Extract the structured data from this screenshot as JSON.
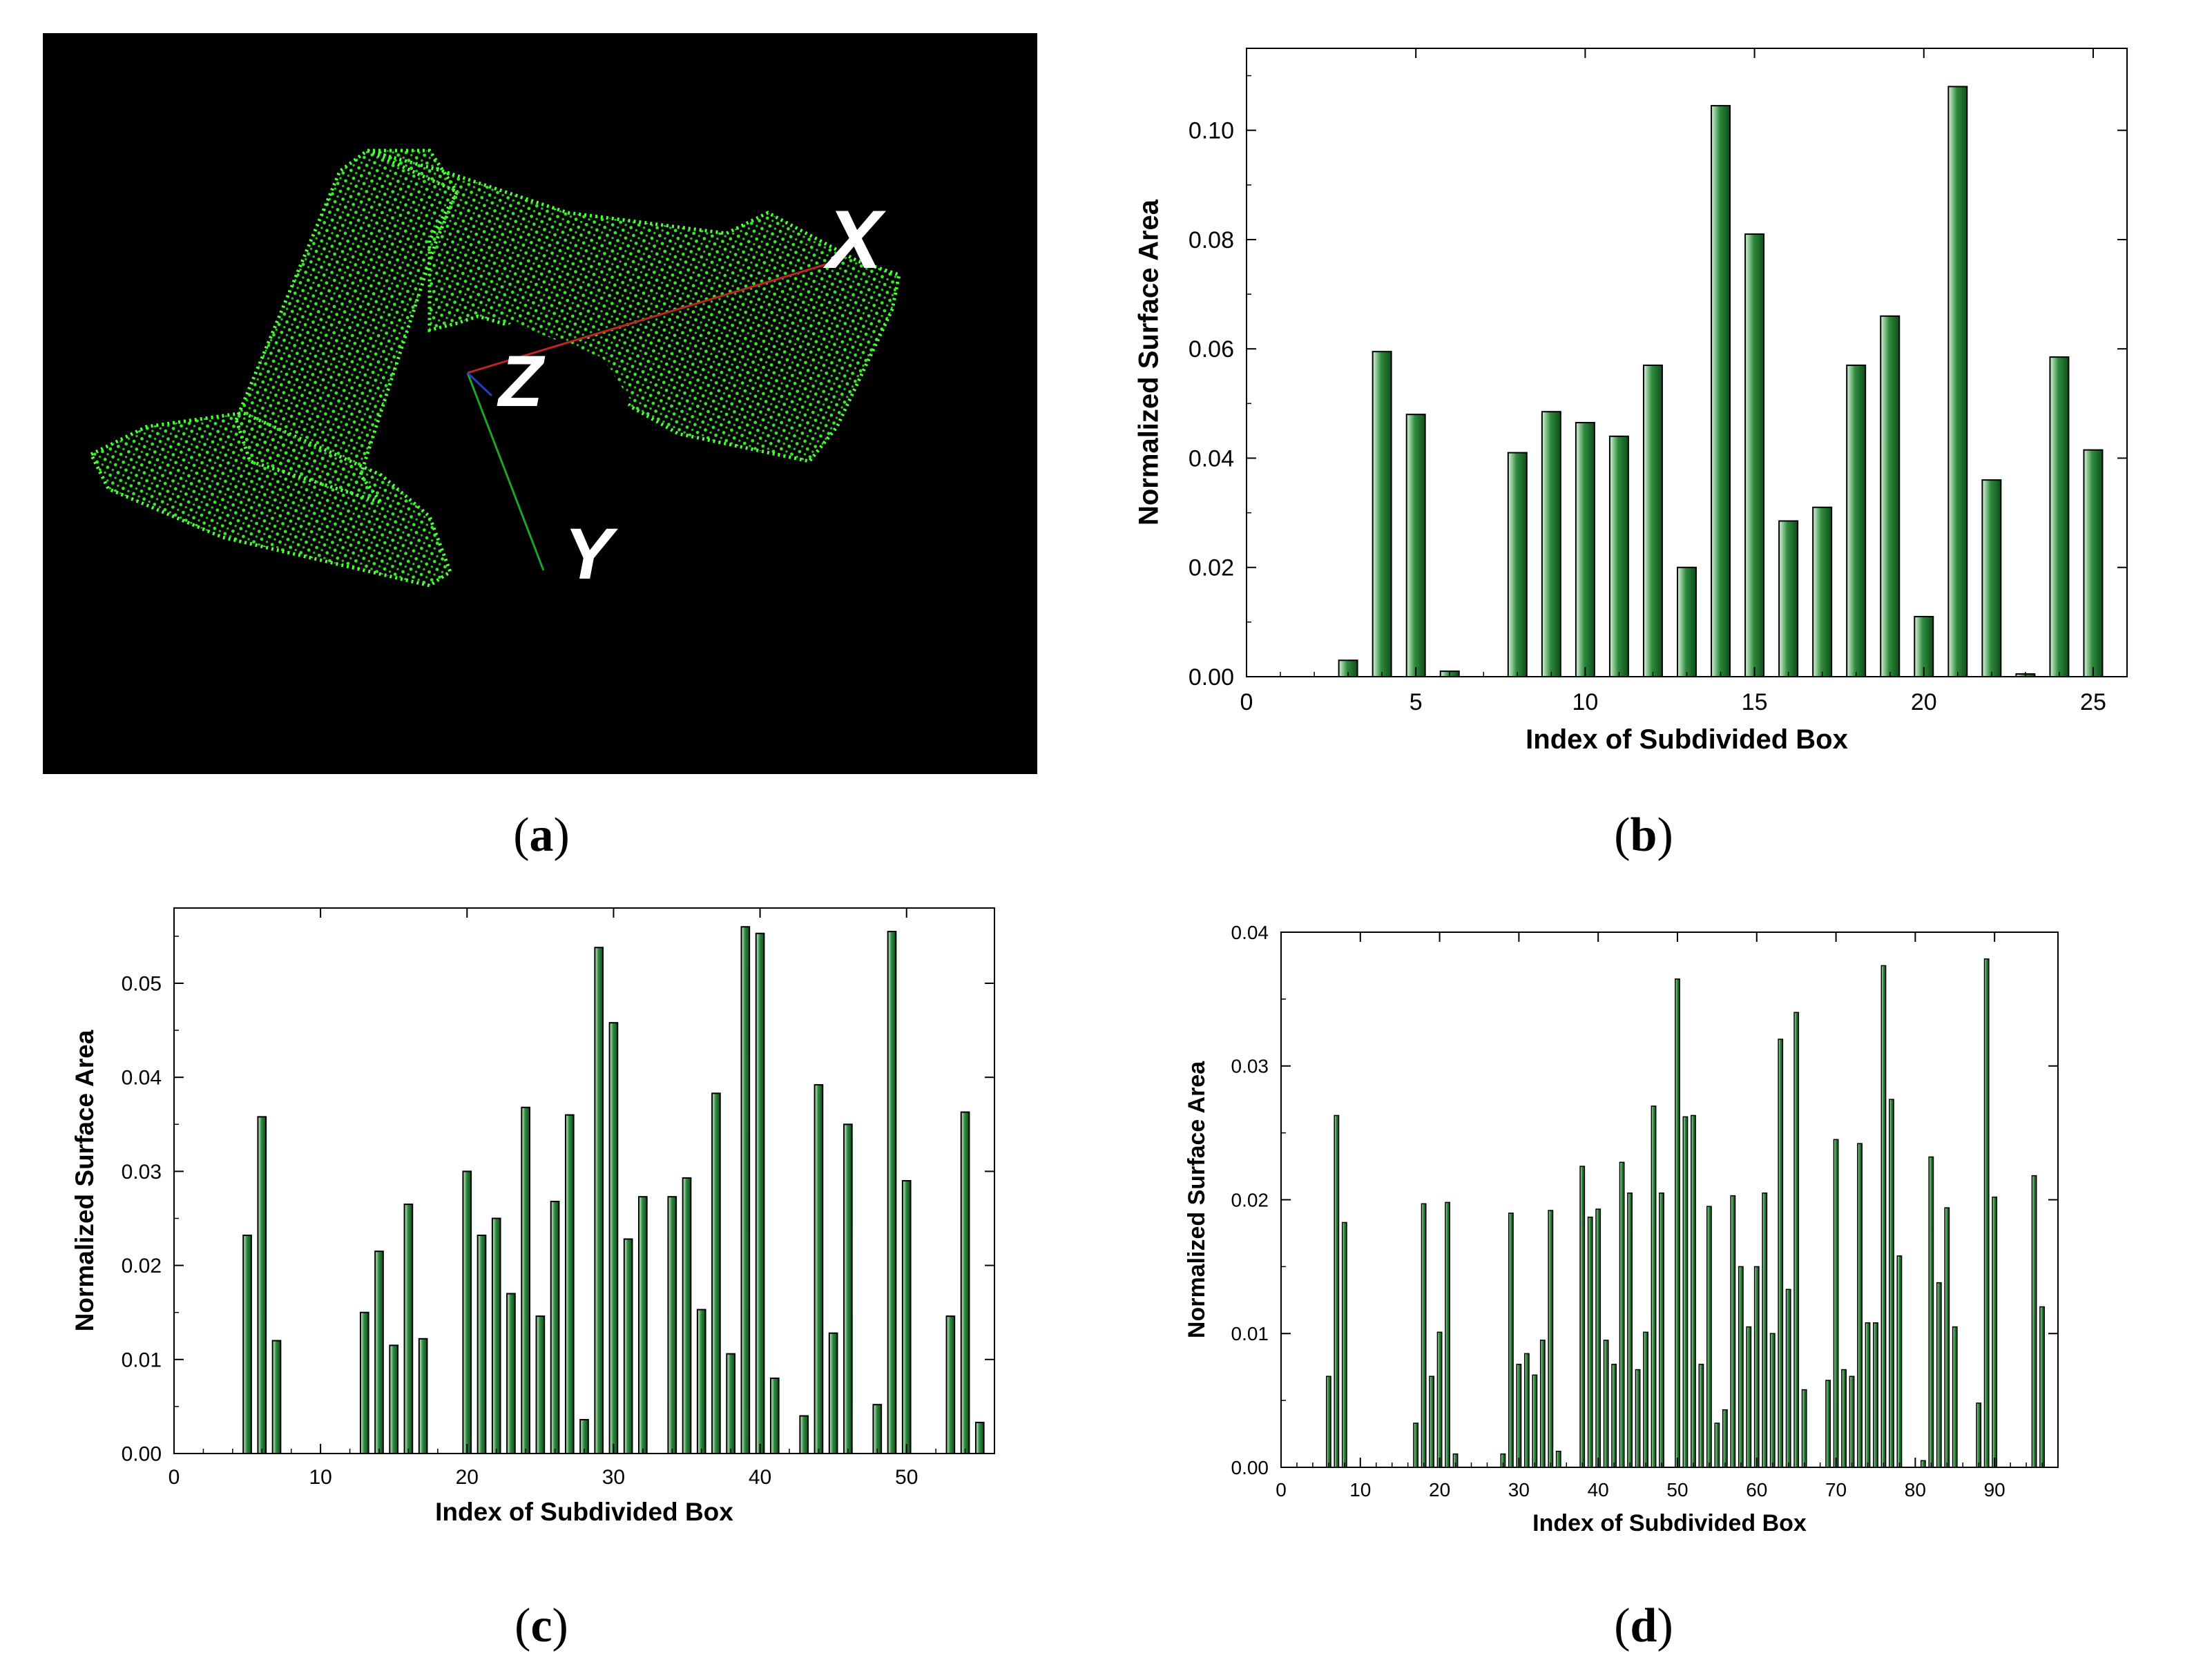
{
  "panel_a": {
    "axis_labels": [
      "X",
      "Z",
      "Y"
    ],
    "background": "#000000",
    "cloud_color": "#39e62a"
  },
  "captions": [
    {
      "open": "(",
      "letter": "a",
      "close": ")"
    },
    {
      "open": "(",
      "letter": "b",
      "close": ")"
    },
    {
      "open": "(",
      "letter": "c",
      "close": ")"
    },
    {
      "open": "(",
      "letter": "d",
      "close": ")"
    }
  ],
  "chart_data": [
    {
      "id": "b",
      "type": "bar",
      "title": "",
      "xlabel": "Index of Subdivided Box",
      "ylabel": "Normalized Surface Area",
      "xlim": [
        0,
        26
      ],
      "ylim": [
        0,
        0.115
      ],
      "xticks": [
        0,
        5,
        10,
        15,
        20,
        25
      ],
      "xtick_labels": [
        "0",
        "5",
        "10",
        "15",
        "20",
        "25"
      ],
      "yticks": [
        0,
        0.02,
        0.04,
        0.06,
        0.08,
        0.1
      ],
      "ytick_labels": [
        "0.00",
        "0.02",
        "0.04",
        "0.06",
        "0.08",
        "0.10"
      ],
      "x": [
        3,
        4,
        5,
        6,
        8,
        9,
        10,
        11,
        12,
        13,
        14,
        15,
        16,
        17,
        18,
        19,
        20,
        21,
        22,
        23,
        24,
        25
      ],
      "values": [
        0.003,
        0.0595,
        0.048,
        0.001,
        0.041,
        0.0485,
        0.0465,
        0.044,
        0.057,
        0.02,
        0.1045,
        0.081,
        0.0285,
        0.031,
        0.057,
        0.066,
        0.011,
        0.108,
        0.036,
        0.0005,
        0.0585,
        0.0415
      ],
      "bar_width": 0.55,
      "bar_color": "#2e8b3c"
    },
    {
      "id": "c",
      "type": "bar",
      "title": "",
      "xlabel": "Index of Subdivided Box",
      "ylabel": "Normalized Surface Area",
      "xlim": [
        0,
        56
      ],
      "ylim": [
        0,
        0.058
      ],
      "xticks": [
        0,
        10,
        20,
        30,
        40,
        50
      ],
      "xtick_labels": [
        "0",
        "10",
        "20",
        "30",
        "40",
        "50"
      ],
      "yticks": [
        0,
        0.01,
        0.02,
        0.03,
        0.04,
        0.05
      ],
      "ytick_labels": [
        "0.00",
        "0.01",
        "0.02",
        "0.03",
        "0.04",
        "0.05"
      ],
      "x": [
        5,
        6,
        7,
        13,
        14,
        15,
        16,
        17,
        20,
        21,
        22,
        23,
        24,
        25,
        26,
        27,
        28,
        29,
        30,
        31,
        32,
        34,
        35,
        36,
        37,
        38,
        39,
        40,
        41,
        43,
        44,
        45,
        46,
        48,
        49,
        50,
        53,
        54,
        55
      ],
      "values": [
        0.0232,
        0.0358,
        0.012,
        0.015,
        0.0215,
        0.0115,
        0.0265,
        0.0122,
        0.03,
        0.0232,
        0.025,
        0.017,
        0.0368,
        0.0146,
        0.0268,
        0.036,
        0.0036,
        0.0538,
        0.0458,
        0.0228,
        0.0273,
        0.0273,
        0.0293,
        0.0153,
        0.0383,
        0.0106,
        0.056,
        0.0553,
        0.008,
        0.004,
        0.0392,
        0.0128,
        0.035,
        0.0052,
        0.0555,
        0.029,
        0.0146,
        0.0363,
        0.0033
      ],
      "bar_width": 0.55,
      "bar_color": "#2e8b3c"
    },
    {
      "id": "d",
      "type": "bar",
      "title": "",
      "xlabel": "Index of Subdivided Box",
      "ylabel": "Normalized Surface Area",
      "xlim": [
        0,
        98
      ],
      "ylim": [
        0,
        0.04
      ],
      "xticks": [
        0,
        10,
        20,
        30,
        40,
        50,
        60,
        70,
        80,
        90
      ],
      "xtick_labels": [
        "0",
        "10",
        "20",
        "30",
        "40",
        "50",
        "60",
        "70",
        "80",
        "90"
      ],
      "yticks": [
        0,
        0.01,
        0.02,
        0.03,
        0.04
      ],
      "ytick_labels": [
        "0.00",
        "0.01",
        "0.02",
        "0.03",
        "0.04"
      ],
      "x": [
        6,
        7,
        8,
        17,
        18,
        19,
        20,
        21,
        22,
        28,
        29,
        30,
        31,
        32,
        33,
        34,
        35,
        38,
        39,
        40,
        41,
        42,
        43,
        44,
        45,
        46,
        47,
        48,
        50,
        51,
        52,
        53,
        54,
        55,
        56,
        57,
        58,
        59,
        60,
        61,
        62,
        63,
        64,
        65,
        66,
        69,
        70,
        71,
        72,
        73,
        74,
        75,
        76,
        77,
        78,
        81,
        82,
        83,
        84,
        85,
        88,
        89,
        90,
        95,
        96
      ],
      "values": [
        0.0068,
        0.0263,
        0.0183,
        0.0033,
        0.0197,
        0.0068,
        0.0101,
        0.0198,
        0.001,
        0.001,
        0.019,
        0.0077,
        0.0085,
        0.0069,
        0.0095,
        0.0192,
        0.0012,
        0.0225,
        0.0187,
        0.0193,
        0.0095,
        0.0077,
        0.0228,
        0.0205,
        0.0073,
        0.0101,
        0.027,
        0.0205,
        0.0365,
        0.0262,
        0.0263,
        0.0077,
        0.0195,
        0.0033,
        0.0043,
        0.0203,
        0.015,
        0.0105,
        0.015,
        0.0205,
        0.01,
        0.032,
        0.0133,
        0.034,
        0.0058,
        0.0065,
        0.0245,
        0.0073,
        0.0068,
        0.0242,
        0.0108,
        0.0108,
        0.0375,
        0.0275,
        0.0158,
        0.0005,
        0.0232,
        0.0138,
        0.0194,
        0.0105,
        0.0048,
        0.038,
        0.0202,
        0.0218,
        0.012
      ],
      "bar_width": 0.55,
      "bar_color": "#2e8b3c"
    }
  ]
}
